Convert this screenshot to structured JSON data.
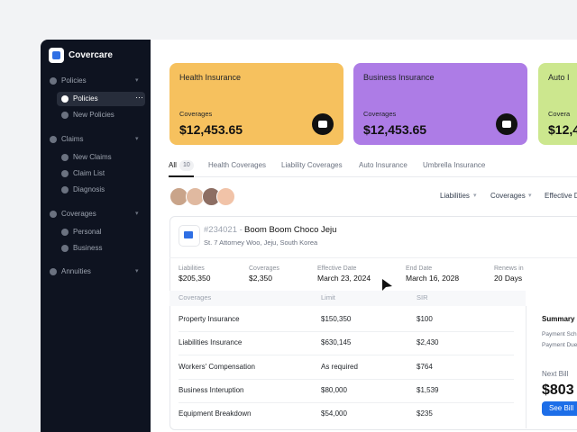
{
  "sidebar": {
    "brand": "Covercare",
    "sections": [
      {
        "label": "Policies",
        "items": [
          "Policies",
          "New Policies"
        ]
      },
      {
        "label": "Claims",
        "items": [
          "New Claims",
          "Claim List",
          "Diagnosis"
        ]
      },
      {
        "label": "Coverages",
        "items": [
          "Personal",
          "Business"
        ]
      },
      {
        "label": "Annuities",
        "items": []
      }
    ]
  },
  "cards": [
    {
      "title": "Health Insurance",
      "label": "Coverages",
      "amount": "$12,453.65"
    },
    {
      "title": "Business Insurance",
      "label": "Coverages",
      "amount": "$12,453.65"
    },
    {
      "title": "Auto I",
      "label": "Covera",
      "amount": "$12,4"
    }
  ],
  "tabs": {
    "all": "All",
    "all_count": 10,
    "others": [
      "Health Coverages",
      "Liability Coverages",
      "Auto Insurance",
      "Umbrella Insurance"
    ]
  },
  "filters": [
    "Liabilities",
    "Coverages",
    "Effective D"
  ],
  "policy": {
    "id": "#234021 -",
    "name": "Boom Boom Choco Jeju",
    "address": "St. 7 Attorney Woo, Jeju, South Korea",
    "stats": [
      {
        "label": "Liabilities",
        "value": "$205,350"
      },
      {
        "label": "Coverages",
        "value": "$2,350"
      },
      {
        "label": "Effective Date",
        "value": "March 23, 2024"
      },
      {
        "label": "End Date",
        "value": "March 16, 2028"
      },
      {
        "label": "Renews in",
        "value": "20 Days"
      }
    ],
    "table": {
      "header": [
        "Coverages",
        "Limit",
        "SIR"
      ],
      "rows": [
        [
          "Property Insurance",
          "$150,350",
          "$100"
        ],
        [
          "Liabilities Insurance",
          "$630,145",
          "$2,430"
        ],
        [
          "Workers' Compensation",
          "As required",
          "$764"
        ],
        [
          "Business Interuption",
          "$80,000",
          "$1,539"
        ],
        [
          "Equipment Breakdown",
          "$54,000",
          "$235"
        ]
      ]
    }
  },
  "summary": {
    "title": "Summary I",
    "lines": [
      "Payment Sch",
      "Payment Due"
    ],
    "next_bill_label": "Next Bill",
    "next_bill": "$803",
    "button": "See Bill"
  }
}
